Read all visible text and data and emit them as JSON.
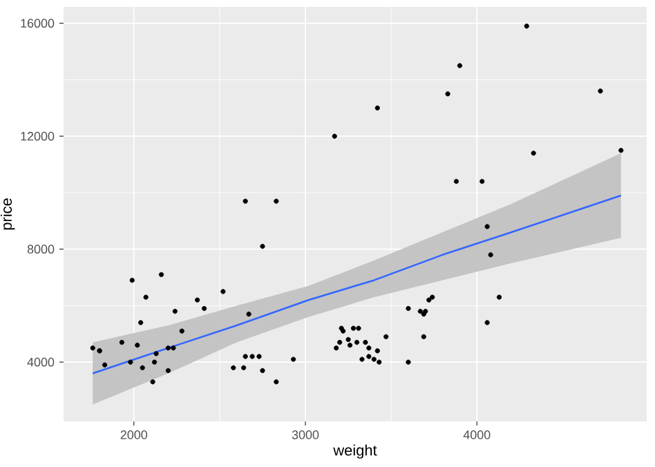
{
  "chart_data": {
    "type": "scatter",
    "xlabel": "weight",
    "ylabel": "price",
    "xlim": [
      1590,
      4990
    ],
    "ylim": [
      1900,
      16580
    ],
    "xticks": [
      2000,
      3000,
      4000
    ],
    "yticks": [
      4000,
      8000,
      12000,
      16000
    ],
    "grid": true,
    "marker": "circle",
    "series": [
      {
        "color": "#000000",
        "x": [
          2930,
          3350,
          2640,
          3250,
          4080,
          3670,
          2230,
          3280,
          3880,
          3400,
          4330,
          3900,
          4290,
          2110,
          3690,
          3180,
          3220,
          2750,
          3430,
          2120,
          3600,
          3600,
          3740,
          1800,
          2650,
          4840,
          4720,
          3830,
          2580,
          4060,
          3720,
          3370,
          4130,
          2830,
          4060,
          3310,
          3300,
          3690,
          3370,
          2730,
          4030,
          3260,
          1800,
          2200,
          2520,
          3330,
          3700,
          3470,
          3210,
          3200,
          3420,
          2690,
          2830,
          2070,
          2650,
          2370,
          2020,
          2280,
          2750,
          2130,
          2240,
          1760,
          1980,
          3420,
          1830,
          2050,
          2410,
          2200,
          2670,
          2160,
          2040,
          1930,
          1990,
          3170
        ],
        "values": [
          4100,
          4700,
          3800,
          4800,
          7800,
          5800,
          4500,
          5200,
          10400,
          4100,
          11400,
          14500,
          15900,
          3300,
          5700,
          4500,
          5100,
          3700,
          4000,
          4000,
          4000,
          5900,
          6300,
          4400,
          4200,
          11500,
          13600,
          13500,
          3800,
          5400,
          6200,
          4500,
          6300,
          3300,
          8800,
          5200,
          4700,
          4900,
          4200,
          4200,
          10400,
          4600,
          4400,
          4500,
          6500,
          4100,
          5800,
          4900,
          5200,
          4700,
          4400,
          4200,
          9700,
          6300,
          9700,
          6200,
          4600,
          5100,
          8100,
          4300,
          5800,
          4500,
          4000,
          13000,
          3900,
          3800,
          5900,
          3700,
          5700,
          7100,
          5400,
          4700,
          6900,
          12000
        ]
      },
      {
        "type": "line",
        "marker": "none",
        "color": "#3366ff",
        "x": [
          1760,
          2200,
          2600,
          3019,
          3400,
          3800,
          4200,
          4840
        ],
        "values": [
          3600,
          4500,
          5300,
          6200,
          6900,
          7800,
          8600,
          9900
        ],
        "lower": [
          2500,
          3600,
          4700,
          5600,
          6300,
          6900,
          7500,
          8400
        ],
        "upper": [
          4700,
          5300,
          6000,
          6700,
          7600,
          8600,
          9600,
          11400
        ]
      }
    ]
  }
}
